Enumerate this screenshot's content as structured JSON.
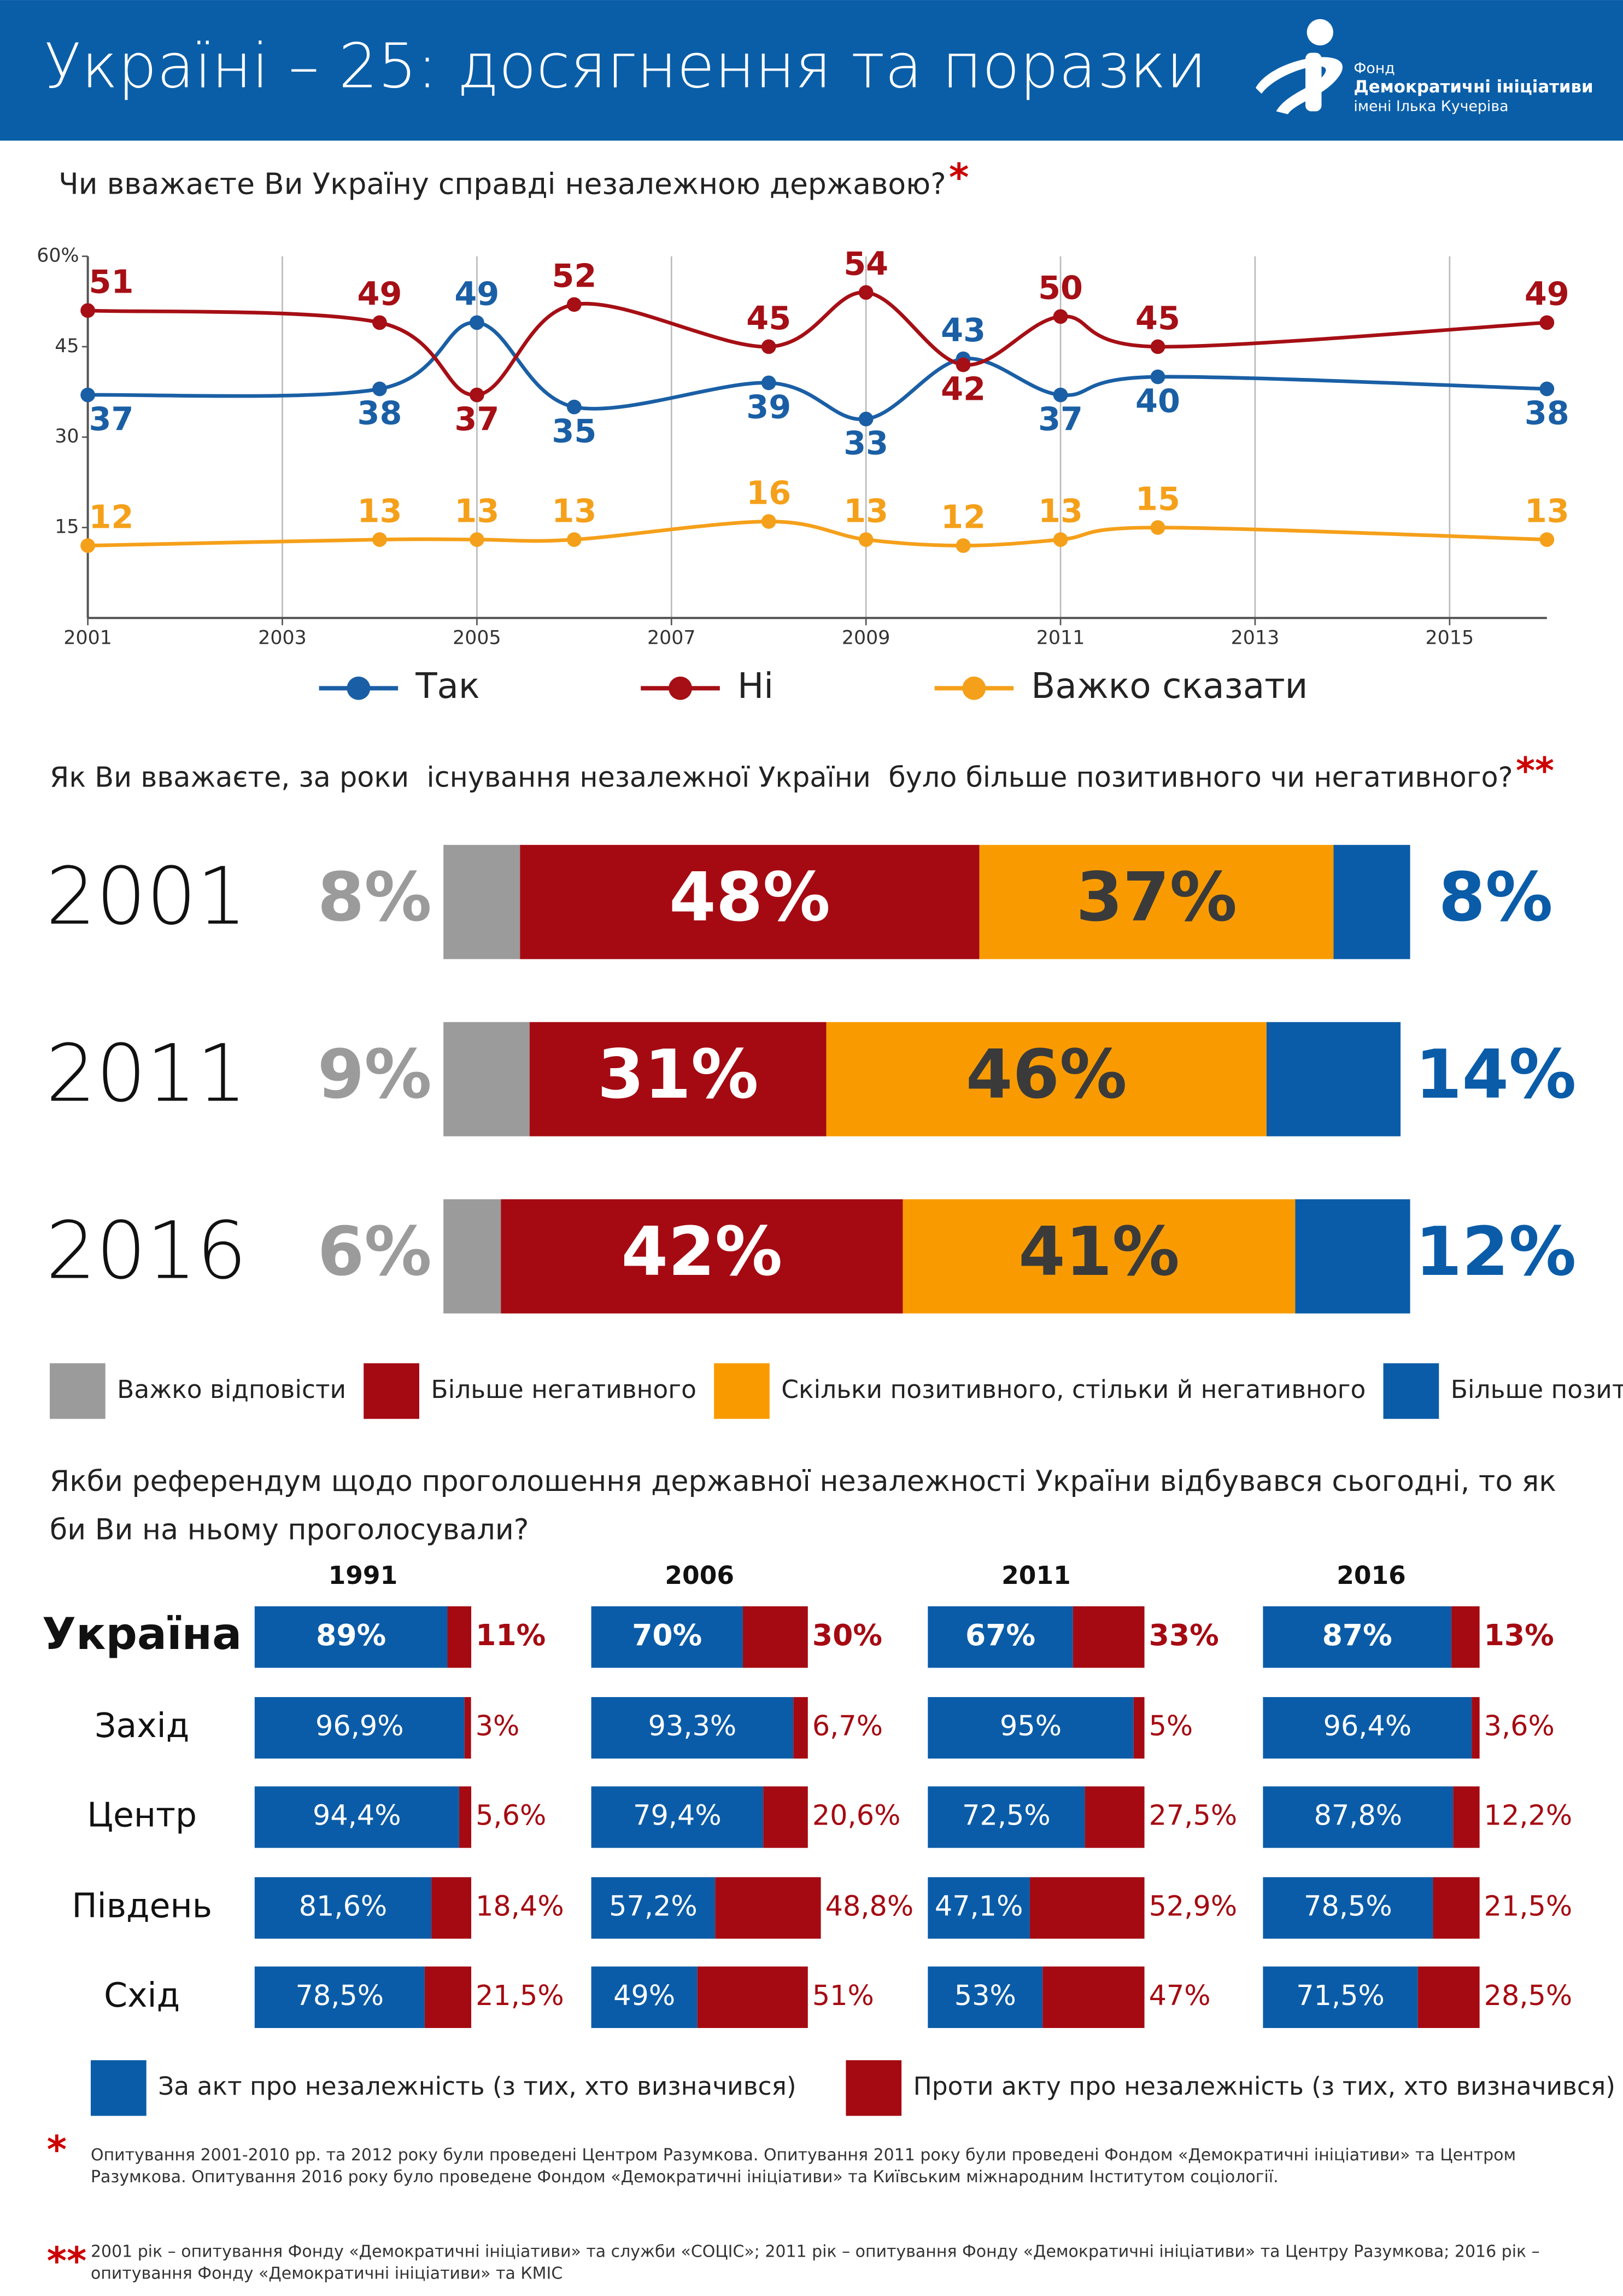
{
  "header": {
    "title": "Україні – 25: досягнення та поразки",
    "logo": [
      "Фонд",
      "Демократичні ініціативи",
      "імені Ілька Кучеріва"
    ]
  },
  "chart_data": [
    {
      "type": "line",
      "title": "Чи вважаєте Ви Україну справді незалежною державою?",
      "title_mark": "*",
      "x": [
        2001,
        2004,
        2005,
        2006,
        2008,
        2009,
        2010,
        2011,
        2012,
        2016
      ],
      "xlim": [
        2001,
        2016
      ],
      "xticks": [
        2001,
        2003,
        2005,
        2007,
        2009,
        2011,
        2013,
        2015
      ],
      "ylim": [
        0,
        60
      ],
      "yticks": [
        15,
        30,
        45,
        {
          "value": 60,
          "label": "60%"
        }
      ],
      "grid": true,
      "series": [
        {
          "name": "Так",
          "color": "#1a5fa5",
          "values": [
            37,
            38,
            49,
            35,
            39,
            33,
            43,
            37,
            40,
            38
          ]
        },
        {
          "name": "Ні",
          "color": "#a50f15",
          "values": [
            51,
            49,
            37,
            52,
            45,
            54,
            42,
            50,
            45,
            49
          ]
        },
        {
          "name": "Важко сказати",
          "color": "#f5a01a",
          "values": [
            12,
            13,
            13,
            13,
            16,
            13,
            12,
            13,
            15,
            13
          ]
        }
      ]
    },
    {
      "type": "stacked-bar",
      "title": "Як Ви вважаєте, за роки  існування незалежної України  було більше позитивного чи негативного?",
      "title_mark": "**",
      "categories": [
        "2001",
        "2011",
        "2016"
      ],
      "series": [
        {
          "name": "Важко відповісти",
          "color": "#9b9b9b",
          "values": [
            8,
            9,
            6
          ],
          "value_labels": [
            "8%",
            "9%",
            "6%"
          ]
        },
        {
          "name": "Більше негативного",
          "color": "#a50a12",
          "values": [
            48,
            31,
            42
          ],
          "value_labels": [
            "48%",
            "31%",
            "42%"
          ]
        },
        {
          "name": "Скільки позитивного, стільки й негативного",
          "color": "#f99b00",
          "values": [
            37,
            46,
            41
          ],
          "value_labels": [
            "37%",
            "46%",
            "41%"
          ]
        },
        {
          "name": "Більше позитивного",
          "color": "#0a5ca8",
          "values": [
            8,
            14,
            12
          ],
          "value_labels": [
            "8%",
            "14%",
            "12%"
          ]
        }
      ]
    },
    {
      "type": "split-bar-grid",
      "title": "Якби референдум щодо проголошення державної незалежності України відбувався сьогодні, то як би Ви на ньому проголосували?",
      "columns": [
        "1991",
        "2006",
        "2011",
        "2016"
      ],
      "categories": [
        "Україна",
        "Захід",
        "Центр",
        "Південь",
        "Схід"
      ],
      "series": [
        {
          "name": "За акт про незалежність (з тих, хто визначився)",
          "color": "#0a5ca8",
          "values": [
            [
              89,
              96.9,
              94.4,
              81.6,
              78.5
            ],
            [
              70,
              93.3,
              79.4,
              57.2,
              49
            ],
            [
              67,
              95,
              72.5,
              47.1,
              53
            ],
            [
              87,
              96.4,
              87.8,
              78.5,
              71.5
            ]
          ],
          "value_labels": [
            [
              "89%",
              "96,9%",
              "94,4%",
              "81,6%",
              "78,5%"
            ],
            [
              "70%",
              "93,3%",
              "79,4%",
              "57,2%",
              "49%"
            ],
            [
              "67%",
              "95%",
              "72,5%",
              "47,1%",
              "53%"
            ],
            [
              "87%",
              "96,4%",
              "87,8%",
              "78,5%",
              "71,5%"
            ]
          ]
        },
        {
          "name": "Проти акту про незалежність (з тих, хто визначився)",
          "color": "#a50a12",
          "values": [
            [
              11,
              3,
              5.6,
              18.4,
              21.5
            ],
            [
              30,
              6.7,
              20.6,
              48.8,
              51
            ],
            [
              33,
              5,
              27.5,
              52.9,
              47
            ],
            [
              13,
              3.6,
              12.2,
              21.5,
              28.5
            ]
          ],
          "value_labels": [
            [
              "11%",
              "3%",
              "5,6%",
              "18,4%",
              "21,5%"
            ],
            [
              "30%",
              "6,7%",
              "20,6%",
              "48,8%",
              "51%"
            ],
            [
              "33%",
              "5%",
              "27,5%",
              "52,9%",
              "47%"
            ],
            [
              "13%",
              "3,6%",
              "12,2%",
              "21,5%",
              "28,5%"
            ]
          ]
        }
      ]
    }
  ],
  "footnotes": [
    {
      "mark": "*",
      "text": "Опитування 2001-2010 рр. та 2012 року були проведені Центром Разумкова. Опитування 2011 року були проведені Фондом «Демократичні ініціативи» та Центром Разумкова. Опитування 2016 року було проведене Фондом «Демократичні ініціативи» та Київським міжнародним Інститутом соціології."
    },
    {
      "mark": "**",
      "text": "2001 рік – опитування Фонду «Демократичні ініціативи» та служби «СОЦІС»; 2011 рік – опитування Фонду «Демократичні ініціативи» та Центру Разумкова; 2016 рік – опитування Фонду «Демократичні ініціативи» та КМІС"
    }
  ]
}
